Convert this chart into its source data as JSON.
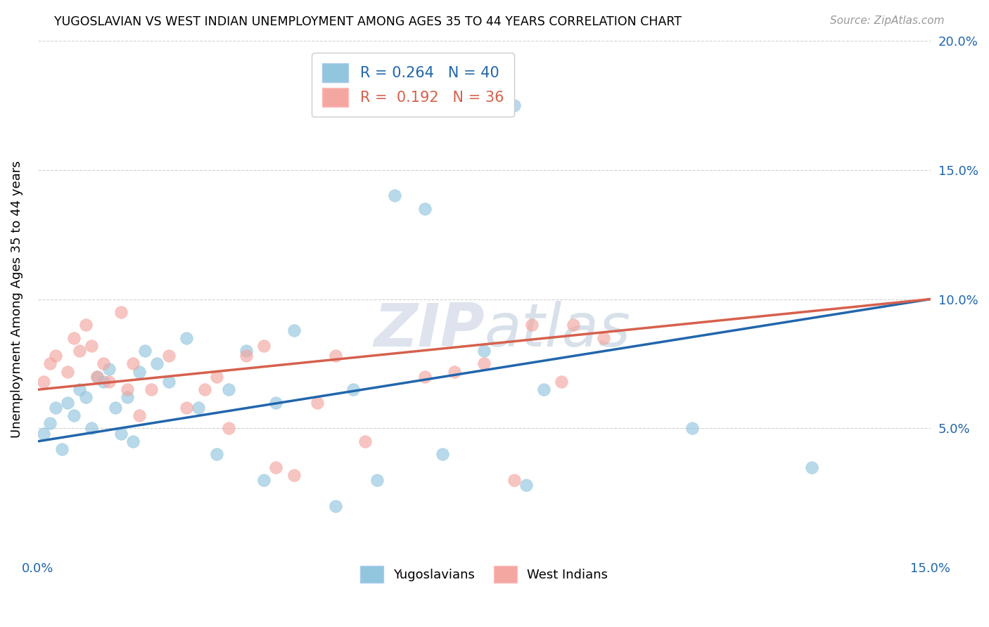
{
  "title": "YUGOSLAVIAN VS WEST INDIAN UNEMPLOYMENT AMONG AGES 35 TO 44 YEARS CORRELATION CHART",
  "source": "Source: ZipAtlas.com",
  "ylabel": "Unemployment Among Ages 35 to 44 years",
  "xlim": [
    0.0,
    0.15
  ],
  "ylim": [
    0.0,
    0.2
  ],
  "legend_r_yugo": "0.264",
  "legend_n_yugo": "40",
  "legend_r_west": "0.192",
  "legend_n_west": "36",
  "yugo_color": "#92c5de",
  "west_color": "#f4a6a0",
  "yugo_line_color": "#2166ac",
  "west_line_color": "#d6604d",
  "background_color": "#ffffff",
  "grid_color": "#cccccc",
  "yugo_x": [
    0.001,
    0.002,
    0.003,
    0.004,
    0.005,
    0.006,
    0.007,
    0.008,
    0.009,
    0.01,
    0.011,
    0.012,
    0.013,
    0.014,
    0.015,
    0.016,
    0.017,
    0.018,
    0.02,
    0.022,
    0.025,
    0.027,
    0.03,
    0.032,
    0.035,
    0.038,
    0.04,
    0.043,
    0.05,
    0.053,
    0.057,
    0.06,
    0.065,
    0.068,
    0.075,
    0.08,
    0.082,
    0.085,
    0.11,
    0.13
  ],
  "yugo_y": [
    0.048,
    0.052,
    0.058,
    0.042,
    0.06,
    0.055,
    0.065,
    0.062,
    0.05,
    0.07,
    0.068,
    0.073,
    0.058,
    0.048,
    0.062,
    0.045,
    0.072,
    0.08,
    0.075,
    0.068,
    0.085,
    0.058,
    0.04,
    0.065,
    0.08,
    0.03,
    0.06,
    0.088,
    0.02,
    0.065,
    0.03,
    0.14,
    0.135,
    0.04,
    0.08,
    0.175,
    0.028,
    0.065,
    0.05,
    0.035
  ],
  "west_x": [
    0.001,
    0.002,
    0.003,
    0.005,
    0.006,
    0.007,
    0.008,
    0.009,
    0.01,
    0.011,
    0.012,
    0.014,
    0.015,
    0.016,
    0.017,
    0.019,
    0.022,
    0.025,
    0.028,
    0.03,
    0.032,
    0.035,
    0.038,
    0.04,
    0.043,
    0.047,
    0.05,
    0.055,
    0.065,
    0.07,
    0.075,
    0.08,
    0.083,
    0.088,
    0.09,
    0.095
  ],
  "west_y": [
    0.068,
    0.075,
    0.078,
    0.072,
    0.085,
    0.08,
    0.09,
    0.082,
    0.07,
    0.075,
    0.068,
    0.095,
    0.065,
    0.075,
    0.055,
    0.065,
    0.078,
    0.058,
    0.065,
    0.07,
    0.05,
    0.078,
    0.082,
    0.035,
    0.032,
    0.06,
    0.078,
    0.045,
    0.07,
    0.072,
    0.075,
    0.03,
    0.09,
    0.068,
    0.09,
    0.085
  ],
  "yugo_line_x0": 0.0,
  "yugo_line_y0": 0.045,
  "yugo_line_x1": 0.15,
  "yugo_line_y1": 0.1,
  "west_line_x0": 0.0,
  "west_line_y0": 0.065,
  "west_line_x1": 0.15,
  "west_line_y1": 0.1
}
